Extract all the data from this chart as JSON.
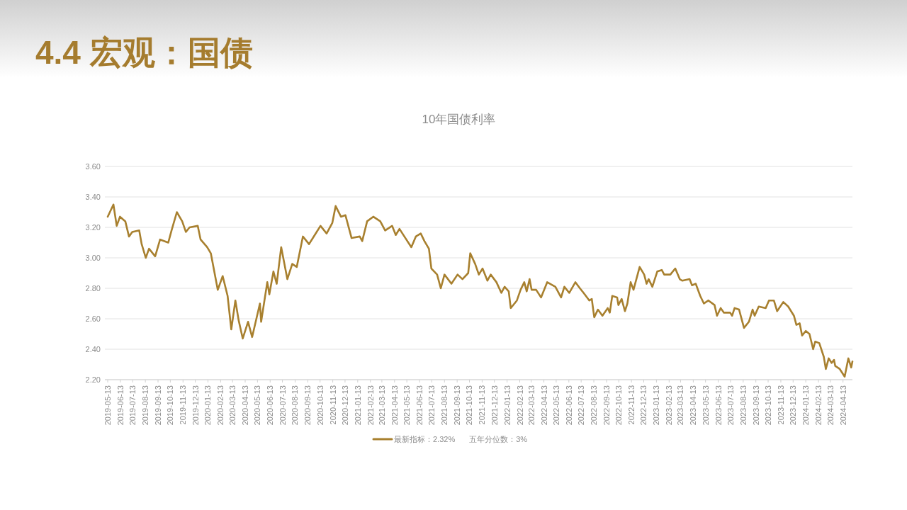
{
  "chart_data": {
    "type": "line",
    "title": "4.4 宏观：国债",
    "subtitle": "10年国债利率",
    "x": [
      "2019-05-13",
      "2019-05-27",
      "2019-06-04",
      "2019-06-12",
      "2019-06-25",
      "2019-07-04",
      "2019-07-12",
      "2019-07-29",
      "2019-08-04",
      "2019-08-14",
      "2019-08-22",
      "2019-09-06",
      "2019-09-18",
      "2019-10-08",
      "2019-10-16",
      "2019-10-29",
      "2019-11-11",
      "2019-11-20",
      "2019-11-29",
      "2019-12-19",
      "2019-12-26",
      "2020-01-11",
      "2020-01-20",
      "2020-02-06",
      "2020-02-18",
      "2020-03-01",
      "2020-03-10",
      "2020-03-20",
      "2020-03-28",
      "2020-04-07",
      "2020-04-20",
      "2020-04-30",
      "2020-05-19",
      "2020-05-22",
      "2020-06-06",
      "2020-06-11",
      "2020-06-21",
      "2020-06-29",
      "2020-07-10",
      "2020-07-25",
      "2020-08-06",
      "2020-08-17",
      "2020-09-01",
      "2020-09-16",
      "2020-09-30",
      "2020-10-14",
      "2020-10-29",
      "2020-11-12",
      "2020-11-20",
      "2020-12-03",
      "2020-12-14",
      "2020-12-29",
      "2021-01-18",
      "2021-01-24",
      "2021-02-05",
      "2021-02-20",
      "2021-03-09",
      "2021-03-21",
      "2021-04-07",
      "2021-04-16",
      "2021-04-25",
      "2021-05-07",
      "2021-05-24",
      "2021-06-04",
      "2021-06-16",
      "2021-06-25",
      "2021-07-06",
      "2021-07-12",
      "2021-07-26",
      "2021-08-04",
      "2021-08-13",
      "2021-08-30",
      "2021-09-14",
      "2021-09-26",
      "2021-10-10",
      "2021-10-15",
      "2021-10-27",
      "2021-11-05",
      "2021-11-14",
      "2021-11-26",
      "2021-12-04",
      "2021-12-18",
      "2021-12-30",
      "2022-01-07",
      "2022-01-17",
      "2022-01-22",
      "2022-02-06",
      "2022-02-15",
      "2022-02-24",
      "2022-03-02",
      "2022-03-09",
      "2022-03-14",
      "2022-03-25",
      "2022-04-06",
      "2022-04-21",
      "2022-05-11",
      "2022-05-25",
      "2022-06-02",
      "2022-06-14",
      "2022-06-29",
      "2022-07-10",
      "2022-07-19",
      "2022-08-02",
      "2022-08-08",
      "2022-08-14",
      "2022-08-23",
      "2022-09-03",
      "2022-09-16",
      "2022-09-21",
      "2022-09-27",
      "2022-10-09",
      "2022-10-12",
      "2022-10-20",
      "2022-10-28",
      "2022-11-03",
      "2022-11-11",
      "2022-11-18",
      "2022-12-03",
      "2022-12-14",
      "2022-12-20",
      "2022-12-25",
      "2023-01-03",
      "2023-01-15",
      "2023-01-26",
      "2023-02-01",
      "2023-02-16",
      "2023-02-28",
      "2023-03-11",
      "2023-03-17",
      "2023-04-04",
      "2023-04-10",
      "2023-04-19",
      "2023-04-30",
      "2023-05-09",
      "2023-05-20",
      "2023-06-04",
      "2023-06-10",
      "2023-06-19",
      "2023-06-27",
      "2023-07-12",
      "2023-07-17",
      "2023-07-23",
      "2023-08-03",
      "2023-08-15",
      "2023-08-27",
      "2023-09-05",
      "2023-09-10",
      "2023-09-20",
      "2023-10-07",
      "2023-10-15",
      "2023-10-27",
      "2023-11-04",
      "2023-11-19",
      "2023-12-01",
      "2023-12-15",
      "2023-12-21",
      "2023-12-29",
      "2024-01-04",
      "2024-01-13",
      "2024-01-22",
      "2024-01-31",
      "2024-02-05",
      "2024-02-15",
      "2024-02-26",
      "2024-03-02",
      "2024-03-09",
      "2024-03-16",
      "2024-03-22",
      "2024-03-25",
      "2024-04-05",
      "2024-04-17",
      "2024-04-26",
      "2024-05-03",
      "2024-05-06"
    ],
    "series": [
      {
        "name": "最新指标：2.32%",
        "color": "#a8802f",
        "values": [
          3.27,
          3.35,
          3.21,
          3.27,
          3.24,
          3.14,
          3.17,
          3.18,
          3.09,
          3.0,
          3.06,
          3.01,
          3.12,
          3.1,
          3.18,
          3.3,
          3.24,
          3.17,
          3.2,
          3.21,
          3.12,
          3.07,
          3.03,
          2.79,
          2.88,
          2.75,
          2.53,
          2.72,
          2.59,
          2.47,
          2.58,
          2.48,
          2.7,
          2.58,
          2.84,
          2.76,
          2.91,
          2.83,
          3.07,
          2.86,
          2.96,
          2.94,
          3.14,
          3.09,
          3.15,
          3.21,
          3.16,
          3.23,
          3.34,
          3.27,
          3.28,
          3.13,
          3.14,
          3.11,
          3.24,
          3.27,
          3.24,
          3.18,
          3.21,
          3.15,
          3.19,
          3.14,
          3.07,
          3.14,
          3.16,
          3.11,
          3.06,
          2.93,
          2.89,
          2.8,
          2.89,
          2.83,
          2.89,
          2.86,
          2.9,
          3.03,
          2.96,
          2.89,
          2.93,
          2.85,
          2.89,
          2.84,
          2.77,
          2.81,
          2.78,
          2.67,
          2.72,
          2.79,
          2.84,
          2.78,
          2.86,
          2.79,
          2.79,
          2.74,
          2.84,
          2.81,
          2.74,
          2.81,
          2.77,
          2.84,
          2.8,
          2.77,
          2.72,
          2.73,
          2.61,
          2.66,
          2.62,
          2.67,
          2.64,
          2.75,
          2.74,
          2.69,
          2.73,
          2.65,
          2.7,
          2.84,
          2.79,
          2.94,
          2.89,
          2.83,
          2.86,
          2.81,
          2.91,
          2.92,
          2.89,
          2.89,
          2.93,
          2.86,
          2.85,
          2.86,
          2.82,
          2.83,
          2.75,
          2.7,
          2.72,
          2.69,
          2.62,
          2.67,
          2.64,
          2.64,
          2.62,
          2.67,
          2.66,
          2.54,
          2.58,
          2.66,
          2.62,
          2.68,
          2.67,
          2.72,
          2.72,
          2.65,
          2.71,
          2.68,
          2.62,
          2.56,
          2.57,
          2.49,
          2.52,
          2.5,
          2.4,
          2.45,
          2.44,
          2.35,
          2.27,
          2.34,
          2.31,
          2.33,
          2.29,
          2.27,
          2.22,
          2.34,
          2.28,
          2.32
        ]
      }
    ],
    "xlim": [
      "2019-05-13",
      "2024-05-06"
    ],
    "xticks": [
      "2019-05-13",
      "2019-06-13",
      "2019-07-13",
      "2019-08-13",
      "2019-09-13",
      "2019-10-13",
      "2019-11-13",
      "2019-12-13",
      "2020-01-13",
      "2020-02-13",
      "2020-03-13",
      "2020-04-13",
      "2020-05-13",
      "2020-06-13",
      "2020-07-13",
      "2020-08-13",
      "2020-09-13",
      "2020-10-13",
      "2020-11-13",
      "2020-12-13",
      "2021-01-13",
      "2021-02-13",
      "2021-03-13",
      "2021-04-13",
      "2021-05-13",
      "2021-06-13",
      "2021-07-13",
      "2021-08-13",
      "2021-09-13",
      "2021-10-13",
      "2021-11-13",
      "2021-12-13",
      "2022-01-13",
      "2022-02-13",
      "2022-03-13",
      "2022-04-13",
      "2022-05-13",
      "2022-06-13",
      "2022-07-13",
      "2022-08-13",
      "2022-09-13",
      "2022-10-13",
      "2022-11-13",
      "2022-12-13",
      "2023-01-13",
      "2023-02-13",
      "2023-03-13",
      "2023-04-13",
      "2023-05-13",
      "2023-06-13",
      "2023-07-13",
      "2023-08-13",
      "2023-09-13",
      "2023-10-13",
      "2023-11-13",
      "2023-12-13",
      "2024-01-13",
      "2024-02-13",
      "2024-03-13",
      "2024-04-13"
    ],
    "ylim": [
      2.2,
      3.6
    ],
    "yticks": [
      {
        "value": 2.2,
        "label": "2.20"
      },
      {
        "value": 2.4,
        "label": "2.40"
      },
      {
        "value": 2.6,
        "label": "2.60"
      },
      {
        "value": 2.8,
        "label": "2.80"
      },
      {
        "value": 3.0,
        "label": "3.00"
      },
      {
        "value": 3.2,
        "label": "3.20"
      },
      {
        "value": 3.4,
        "label": "3.40"
      },
      {
        "value": 3.6,
        "label": "3.60"
      }
    ],
    "grid": "y",
    "legend": "bottom",
    "annotations": [
      "五年分位数：3%"
    ]
  }
}
